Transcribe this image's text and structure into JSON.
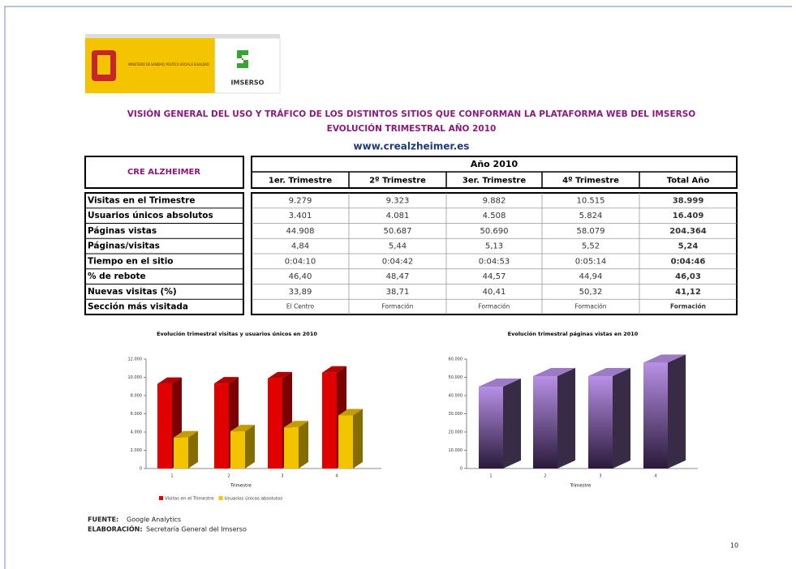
{
  "header": {
    "logo_ministry": "MINISTERIO DE SANIDAD, POLÍTICA SOCIAL E IGUALDAD",
    "logo_imserso": "IMSERSO",
    "title": "VISIÓN GENERAL DEL USO Y TRÁFICO DE LOS DISTINTOS SITIOS QUE CONFORMAN LA PLATAFORMA WEB DEL IMSERSO",
    "subtitle": "EVOLUCIÓN TRIMESTRAL AÑO 2010",
    "url": "www.crealzheimer.es"
  },
  "table": {
    "corner": "CRE ALZHEIMER",
    "group": "Año 2010",
    "columns": [
      "1er. Trimestre",
      "2º Trimestre",
      "3er. Trimestre",
      "4º Trimestre",
      "Total Año"
    ],
    "rows": [
      [
        "Visitas en el Trimestre",
        "9.279",
        "9.323",
        "9.882",
        "10.515",
        "38.999"
      ],
      [
        "Usuarios únicos absolutos",
        "3.401",
        "4.081",
        "4.508",
        "5.824",
        "16.409"
      ],
      [
        "Páginas vistas",
        "44.908",
        "50.687",
        "50.690",
        "58.079",
        "204.364"
      ],
      [
        "Páginas/visitas",
        "4,84",
        "5,44",
        "5,13",
        "5,52",
        "5,24"
      ],
      [
        "Tiempo en el sitio",
        "0:04:10",
        "0:04:42",
        "0:04:53",
        "0:05:14",
        "0:04:46"
      ],
      [
        "% de rebote",
        "46,40",
        "48,47",
        "44,57",
        "44,94",
        "46,03"
      ],
      [
        "Nuevas visitas (%)",
        "33,89",
        "38,71",
        "40,41",
        "50,32",
        "41,12"
      ],
      [
        "Sección más visitada",
        "El Centro",
        "Formación",
        "Formación",
        "Formación",
        "Formación"
      ]
    ]
  },
  "chart_data": [
    {
      "type": "bar",
      "title": "Evolución trimestral visitas y usuarios únicos en 2010",
      "categories": [
        "1",
        "2",
        "3",
        "4"
      ],
      "x_label": "Trimestre",
      "series": [
        {
          "name": "Visitas en el Trimestre",
          "color": "#e00000",
          "values": [
            9279,
            9323,
            9882,
            10515
          ]
        },
        {
          "name": "Usuarios únicos absolutos",
          "color": "#f2c400",
          "values": [
            3401,
            4081,
            4508,
            5824
          ]
        }
      ],
      "ylim": [
        0,
        12000
      ],
      "yticks": [
        0,
        {
          "value": 2000,
          "label": "2.000"
        },
        {
          "value": 4000,
          "label": "4.000"
        },
        {
          "value": 6000,
          "label": "6.000"
        },
        {
          "value": 8000,
          "label": "8.000"
        },
        {
          "value": 10000,
          "label": "10.000"
        },
        {
          "value": 12000,
          "label": "12.000"
        }
      ],
      "legend": "bottom"
    },
    {
      "type": "bar",
      "title": "Evolución trimestral páginas vistas en 2010",
      "categories": [
        "1",
        "2",
        "3",
        "4"
      ],
      "x_label": "Trimestre",
      "series": [
        {
          "color": "#b890e6",
          "values": [
            44908,
            50687,
            50690,
            58079
          ]
        }
      ],
      "ylim": [
        0,
        60000
      ],
      "yticks": [
        0,
        {
          "value": 10000,
          "label": "10.000"
        },
        {
          "value": 20000,
          "label": "20.000"
        },
        {
          "value": 30000,
          "label": "30.000"
        },
        {
          "value": 40000,
          "label": "40.000"
        },
        {
          "value": 50000,
          "label": "50.000"
        },
        {
          "value": 60000,
          "label": "60.000"
        }
      ]
    }
  ],
  "footer": {
    "source_label": "FUENTE:",
    "source": "Google Analytics",
    "prepared_label": "ELABORACIÓN:",
    "prepared": "Secretaría General del Imserso",
    "page": "10"
  }
}
